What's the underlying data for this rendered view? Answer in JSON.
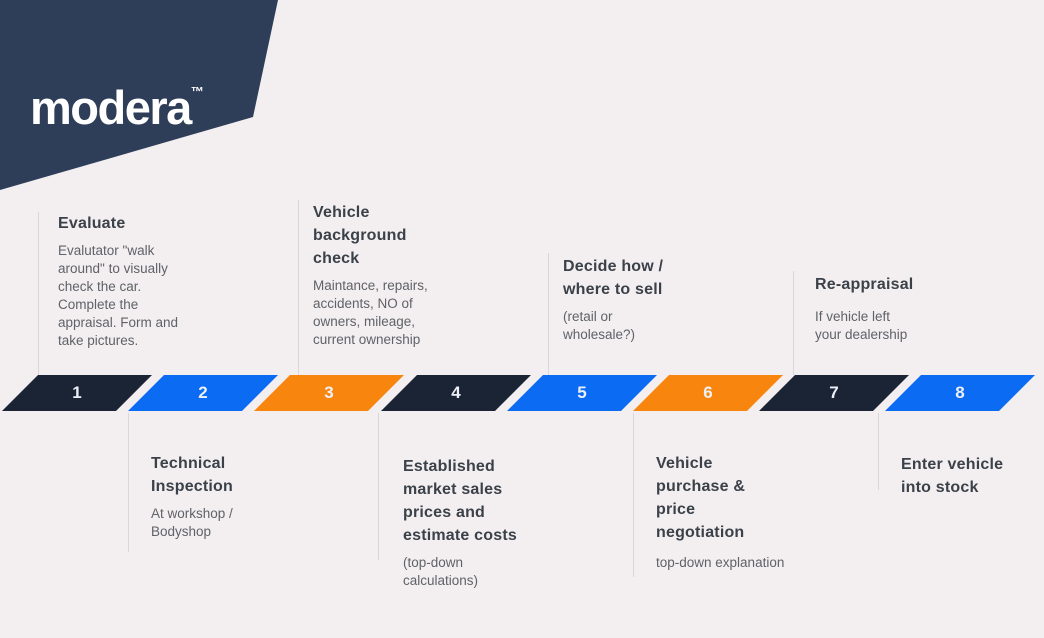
{
  "logo": {
    "text": "modera",
    "trademark": "TM"
  },
  "colors": {
    "navy": "#1a2435",
    "blue": "#0b6bf2",
    "orange": "#f8860e",
    "background": "#f3eff1",
    "logo_navy": "#2e3e59",
    "heading_text": "#3b4149",
    "body_text": "#5f6267",
    "connector_line": "#dbd7d9"
  },
  "steps": [
    {
      "num": "1",
      "color": "navy",
      "position": "top",
      "title": "Evaluate",
      "body": "Evalutator \"walk\naround\" to visually\ncheck the car.\nComplete the\nappraisal. Form and\ntake pictures."
    },
    {
      "num": "2",
      "color": "blue",
      "position": "bottom",
      "title": "Technical\nInspection",
      "body": "At workshop /\nBodyshop"
    },
    {
      "num": "3",
      "color": "orange",
      "position": "top",
      "title": "Vehicle\nbackground\ncheck",
      "body": "Maintance, repairs,\naccidents, NO of\nowners, mileage,\ncurrent ownership"
    },
    {
      "num": "4",
      "color": "navy",
      "position": "bottom",
      "title": "Established\nmarket sales\nprices and\nestimate costs",
      "body": "(top-down\ncalculations)"
    },
    {
      "num": "5",
      "color": "blue",
      "position": "top",
      "title": "Decide how /\nwhere to sell",
      "body": "(retail or\nwholesale?)"
    },
    {
      "num": "6",
      "color": "orange",
      "position": "bottom",
      "title": "Vehicle\npurchase &\nprice\nnegotiation",
      "body": "top-down explanation"
    },
    {
      "num": "7",
      "color": "navy",
      "position": "top",
      "title": "Re-appraisal",
      "body": "If vehicle left\nyour dealership"
    },
    {
      "num": "8",
      "color": "blue",
      "position": "bottom",
      "title": "Enter vehicle\ninto stock",
      "body": ""
    }
  ]
}
